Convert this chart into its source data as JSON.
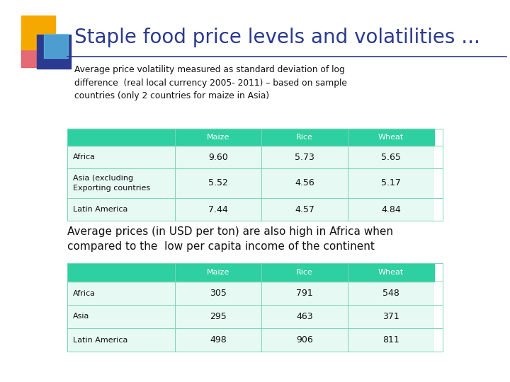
{
  "title": "Staple food price levels and volatilities ...",
  "subtitle": "Average price volatility measured as standard deviation of log\ndifference  (real local currency 2005- 2011) – based on sample\ncountries (only 2 countries for maize in Asia)",
  "mid_text": "Average prices (in USD per ton) are also high in Africa when\ncompared to the  low per capita income of the continent",
  "table1_header": [
    "",
    "Maize",
    "Rice",
    "Wheat"
  ],
  "table1_rows": [
    [
      "Africa",
      "9.60",
      "5.73",
      "5.65"
    ],
    [
      "Asia (excluding",
      "5.52",
      "4.56",
      "5.17"
    ],
    [
      "Latin America",
      "7.44",
      "4.57",
      "4.84"
    ]
  ],
  "table2_header": [
    "",
    "Maize",
    "Rice",
    "Wheat"
  ],
  "table2_rows": [
    [
      "Africa",
      "305",
      "791",
      "548"
    ],
    [
      "Asia",
      "295",
      "463",
      "371"
    ],
    [
      "Latin America",
      "498",
      "906",
      "811"
    ]
  ],
  "header_bg": "#2ecfa0",
  "row_bg": "#e6f9f3",
  "header_text_color": "#ffffff",
  "title_color": "#2b3a8f",
  "bg_color": "#ffffff",
  "logo_yellow": "#f5a800",
  "logo_red": "#e05060",
  "logo_blue": "#2b3a8f",
  "logo_lblue": "#5bbfe8",
  "separator_color": "#2b3a8f",
  "border_color": "#7dd4b8"
}
